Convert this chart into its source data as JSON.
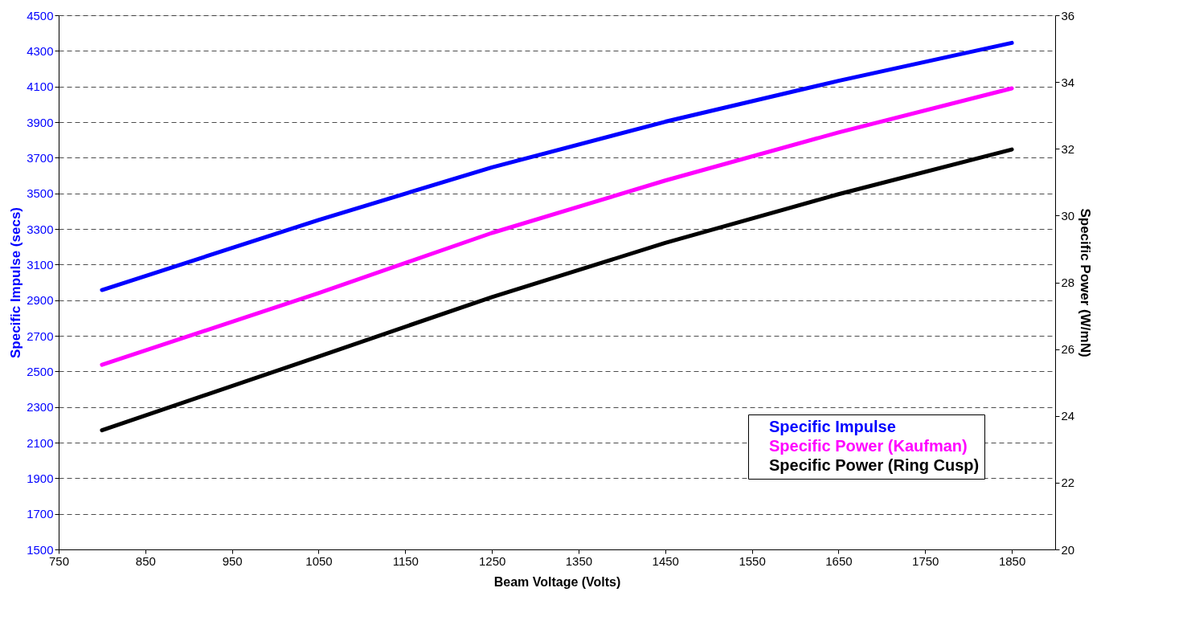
{
  "chart_data": {
    "type": "line",
    "xlabel": "Beam Voltage (Volts)",
    "ylabel": "Specific Impulse (secs)",
    "y2label": "Specific Power (W/mN)",
    "x": [
      800,
      1050,
      1250,
      1450,
      1650,
      1850
    ],
    "series": [
      {
        "name": "Specific Impulse",
        "color": "#0000ff",
        "values": [
          2957,
          3350,
          3646,
          3902,
          4132,
          4345
        ]
      },
      {
        "name": "Specific Power (Kaufman)",
        "color": "#ff00ff",
        "axis": "y2",
        "values": [
          25.53,
          27.68,
          29.48,
          31.05,
          32.49,
          33.81
        ]
      },
      {
        "name": "Specific Power (Ring Cusp)",
        "color": "#000000",
        "axis": "y2",
        "values": [
          23.57,
          25.78,
          27.56,
          29.18,
          30.64,
          31.98
        ]
      }
    ],
    "xlim": [
      750,
      1900
    ],
    "xticks": [
      750,
      850,
      950,
      1050,
      1150,
      1250,
      1350,
      1450,
      1550,
      1650,
      1750,
      1850
    ],
    "ylim": [
      1500,
      4500
    ],
    "yticks": [
      1500,
      1700,
      1900,
      2100,
      2300,
      2500,
      2700,
      2900,
      3100,
      3300,
      3500,
      3700,
      3900,
      4100,
      4300,
      4500
    ],
    "y2lim": [
      20,
      36
    ],
    "y2ticks": [
      20,
      22,
      24,
      26,
      28,
      30,
      32,
      34,
      36
    ],
    "grid": "y",
    "legend": "bottom right",
    "line_style": "solid",
    "marker": "none"
  }
}
